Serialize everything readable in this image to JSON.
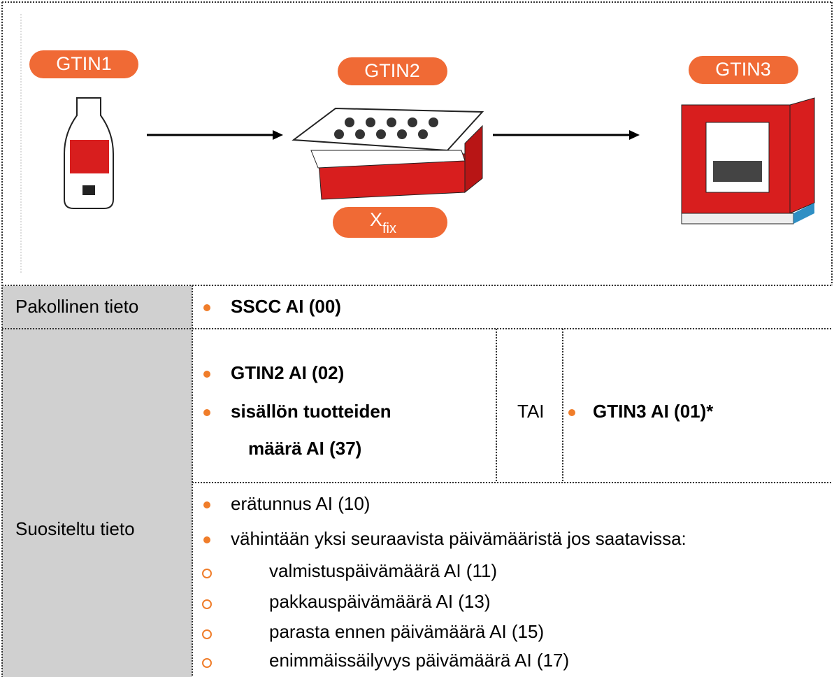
{
  "diagram": {
    "labels": [
      "GTIN1",
      "GTIN2",
      "GTIN3"
    ],
    "xfix": {
      "base": "X",
      "sub": "fix"
    }
  },
  "table": {
    "rows": [
      {
        "label": "Pakollinen tieto",
        "items": [
          "SSCC AI (00)"
        ]
      },
      {
        "label": "Suositeltu tieto",
        "option_a": [
          "GTIN2 AI (02)",
          "sisällön tuotteiden",
          "määrä AI (37)"
        ],
        "or": "TAI",
        "option_b": [
          "GTIN3 AI (01)*"
        ],
        "items": [
          "erätunnus AI (10)",
          "vähintään yksi seuraavista päivämääristä jos saatavissa:"
        ],
        "sub_items": [
          "valmistuspäivämäärä AI (11)",
          "pakkauspäivämäärä AI (13)",
          "parasta ennen päivämäärä AI (15)",
          "enimmäissäilyvys päivämäärä AI (17)"
        ]
      }
    ]
  }
}
